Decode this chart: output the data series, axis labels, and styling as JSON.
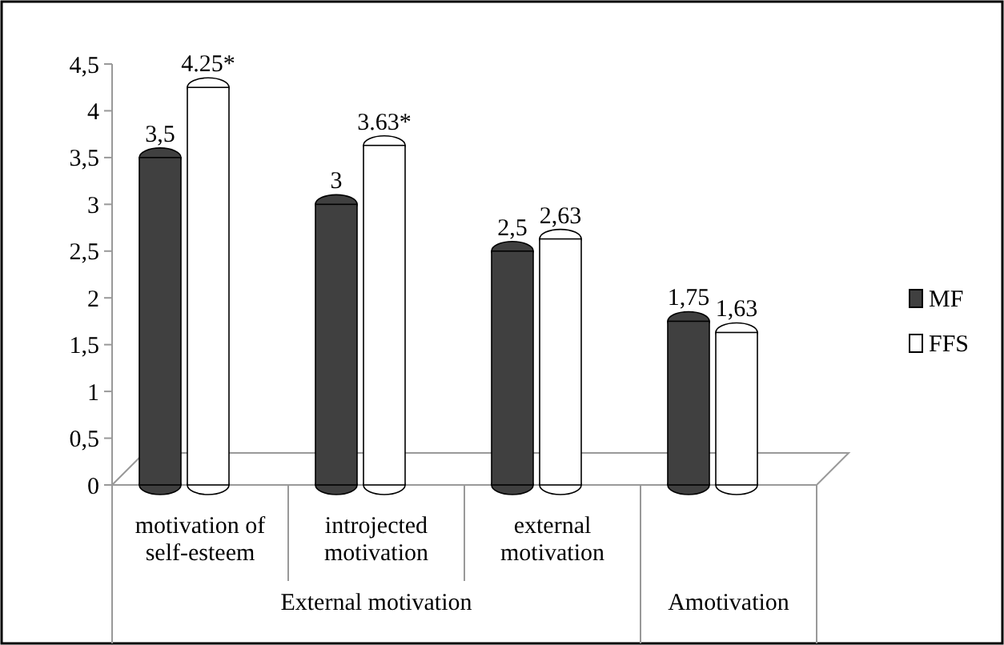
{
  "chart_data": {
    "type": "bar",
    "categories": [
      "motivation of self-esteem",
      "introjected motivation",
      "external motivation",
      null
    ],
    "series": [
      {
        "name": "MF",
        "color": "#404040",
        "values": [
          3.5,
          3,
          2.5,
          1.75
        ],
        "value_labels": [
          "3,5",
          "3",
          "2,5",
          "1,75"
        ]
      },
      {
        "name": "FFS",
        "color": "#ffffff",
        "values": [
          4.25,
          3.63,
          2.63,
          1.63
        ],
        "value_labels": [
          "4.25*",
          "3.63*",
          "2,63",
          "1,63"
        ]
      }
    ],
    "ylim": [
      0,
      4.5
    ],
    "yticks": [
      0,
      {
        "value": 0.5,
        "label": "0,5"
      },
      1,
      {
        "value": 1.5,
        "label": "1,5"
      },
      2,
      {
        "value": 2.5,
        "label": "2,5"
      },
      3,
      {
        "value": 3.5,
        "label": "3,5"
      },
      4,
      {
        "value": 4.5,
        "label": "4,5"
      }
    ],
    "annotations": [
      "External motivation",
      "Amotivation"
    ],
    "legend": "right",
    "grid": false
  }
}
